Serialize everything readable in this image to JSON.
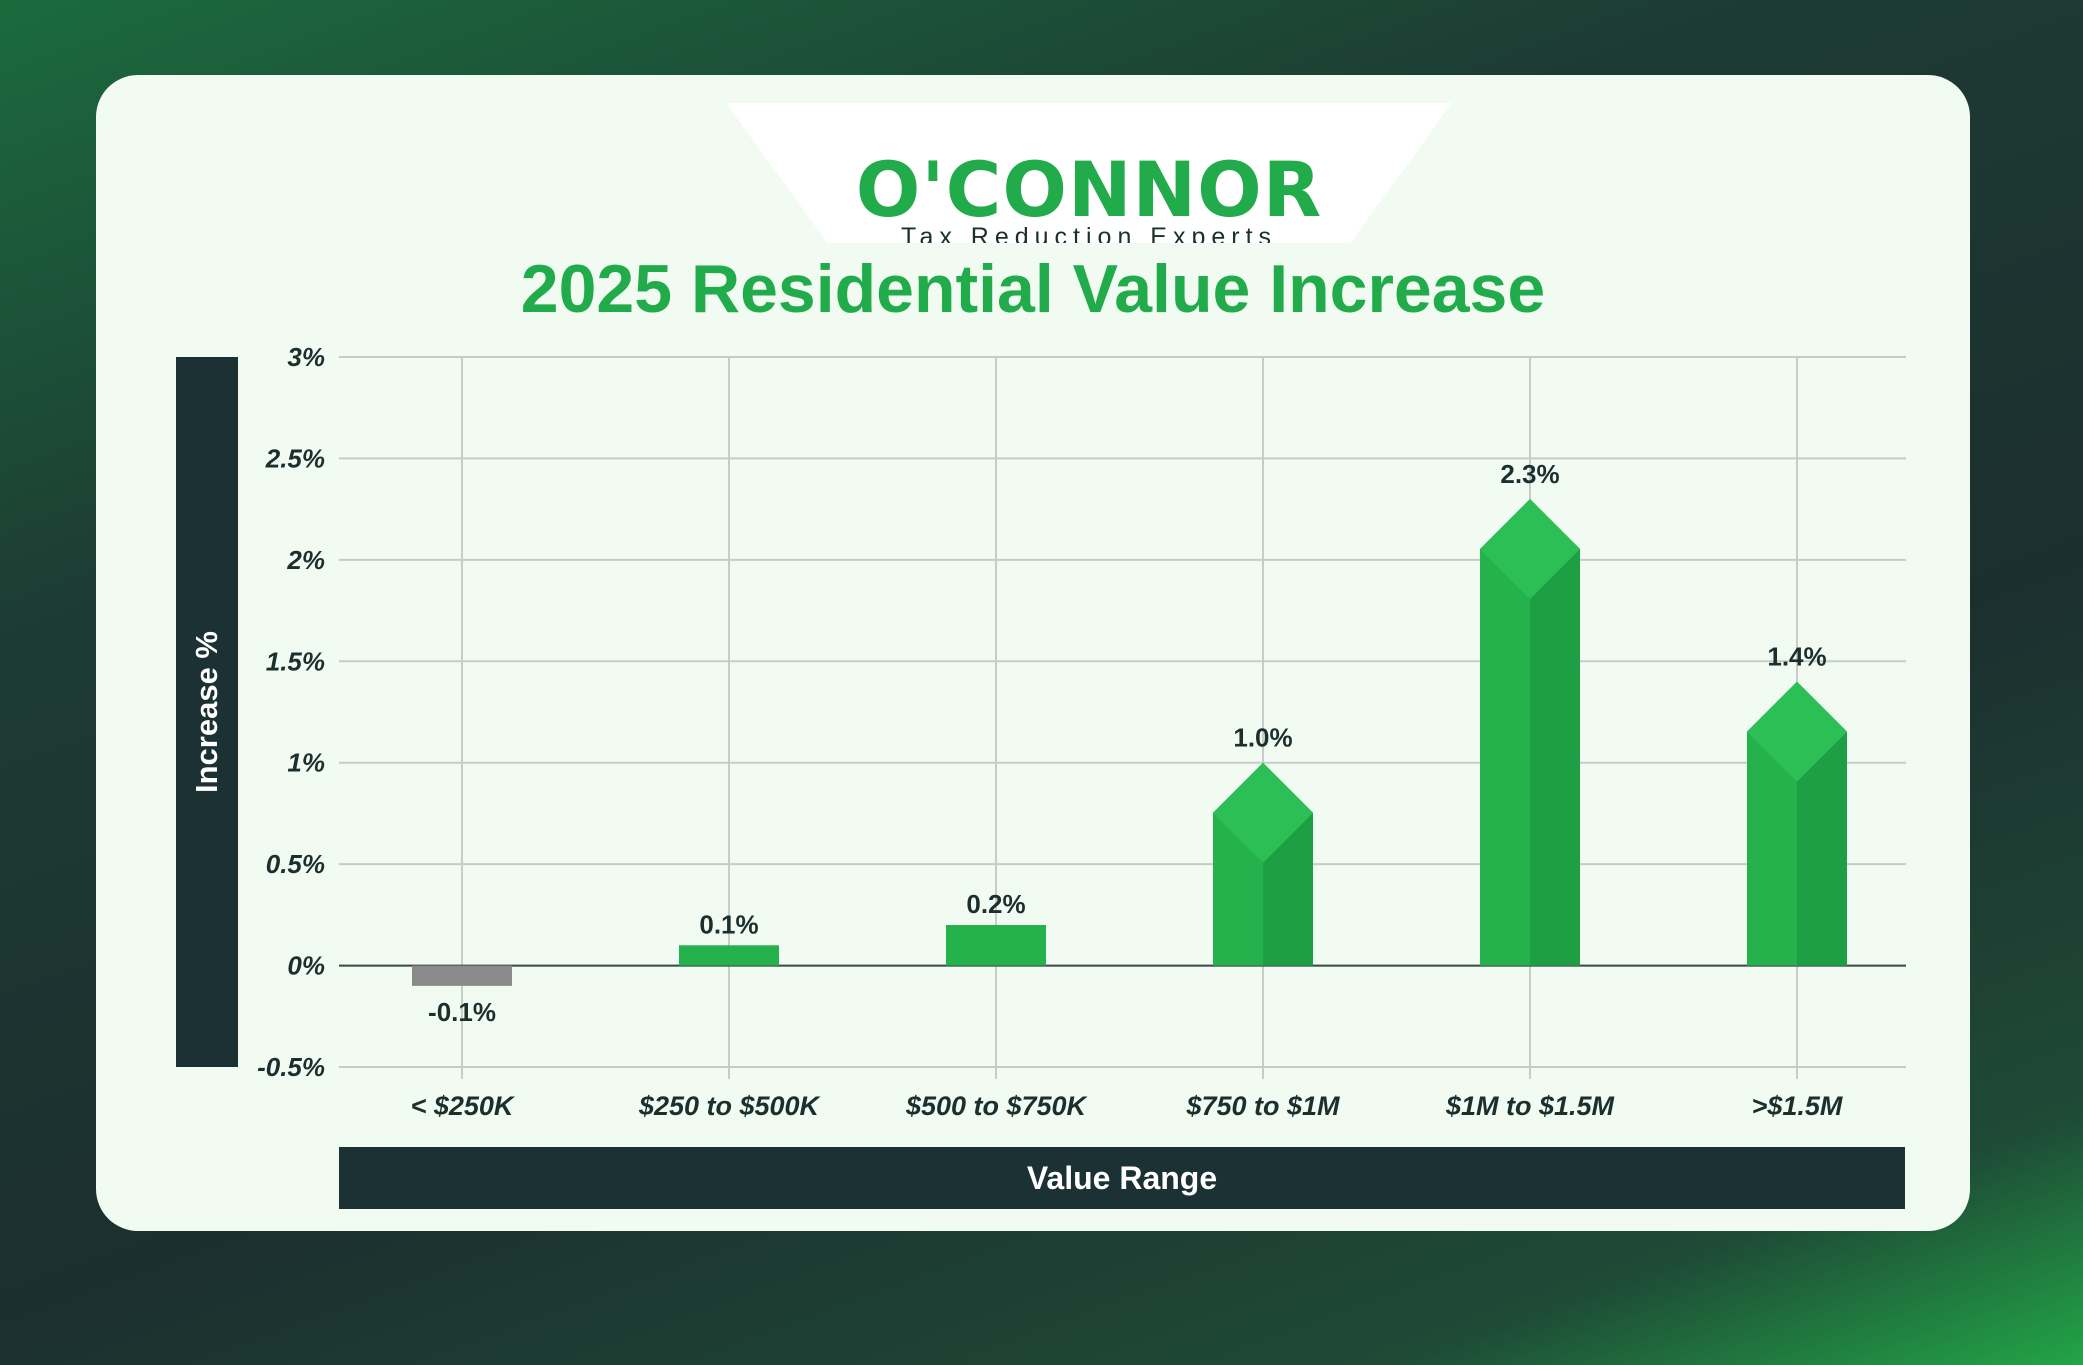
{
  "logo": {
    "name": "O'CONNOR",
    "tagline": "Tax Reduction Experts"
  },
  "colors": {
    "brand_green": "#22ab4a",
    "bar_green": "#25b24d",
    "bar_green_dark": "#1f9f43",
    "negative_bar": "#8a8a8a",
    "dark_band": "#1c3133"
  },
  "chart_data": {
    "type": "bar",
    "title": "2025 Residential Value Increase",
    "xlabel": "Value Range",
    "ylabel": "Increase %",
    "categories": [
      "< $250K",
      "$250 to $500K",
      "$500 to $750K",
      "$750 to $1M",
      "$1M to $1.5M",
      ">$1.5M"
    ],
    "values": [
      -0.1,
      0.1,
      0.2,
      1.0,
      2.3,
      1.4
    ],
    "data_labels": [
      "-0.1%",
      "0.1%",
      "0.2%",
      "1.0%",
      "2.3%",
      "1.4%"
    ],
    "ylim": [
      -0.5,
      3
    ],
    "yticks": [
      3,
      2.5,
      2,
      1.5,
      1,
      0.5,
      0,
      -0.5
    ],
    "ytick_labels": [
      "3%",
      "2.5%",
      "2%",
      "1.5%",
      "1%",
      "0.5%",
      "0%",
      "-0.5%"
    ],
    "grid": true,
    "legend": "none"
  }
}
